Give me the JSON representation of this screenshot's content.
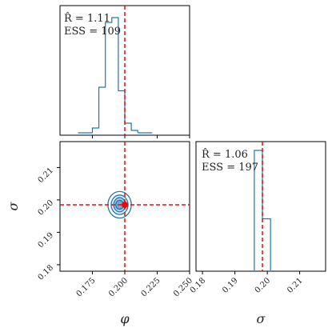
{
  "chart_data": {
    "type": "corner",
    "parameters": [
      {
        "symbol": "φ",
        "truth": 0.2,
        "range": [
          0.15,
          0.25
        ],
        "ticks": [
          "0.175",
          "0.200",
          "0.225",
          "0.250"
        ],
        "tick_values": [
          0.175,
          0.2,
          0.225,
          0.25
        ]
      },
      {
        "symbol": "σ",
        "truth": 0.1985,
        "range": [
          0.178,
          0.218
        ],
        "ticks": [
          "0.18",
          "0.19",
          "0.20",
          "0.21"
        ],
        "tick_values": [
          0.18,
          0.19,
          0.2,
          0.21
        ]
      }
    ],
    "marginals": [
      {
        "param": "φ",
        "rhat_label": "R̂ = 1.11",
        "ess_label": "ESS = 109",
        "bin_edges": [
          0.175,
          0.18,
          0.185,
          0.19,
          0.195,
          0.2,
          0.205,
          0.21
        ],
        "counts": [
          0.04,
          0.38,
          0.92,
          0.96,
          0.35,
          0.08,
          0.02
        ]
      },
      {
        "param": "σ",
        "rhat_label": "R̂ = 1.06",
        "ess_label": "ESS = 197",
        "bin_edges": [
          0.196,
          0.1985,
          0.201
        ],
        "counts": [
          1.0,
          0.43
        ]
      }
    ],
    "joint": {
      "x_param": "φ",
      "y_param": "σ",
      "center": [
        0.196,
        0.1985
      ],
      "contour_radii_x": [
        0.003,
        0.0045,
        0.0065,
        0.009
      ],
      "contour_radii_y": [
        0.0014,
        0.0022,
        0.003,
        0.0041
      ],
      "fill_levels": [
        0.6,
        0.35,
        0.18
      ]
    },
    "colors": {
      "line": "#1f77b4",
      "truth": "#ff0000",
      "fill": "#1f77b4"
    }
  }
}
